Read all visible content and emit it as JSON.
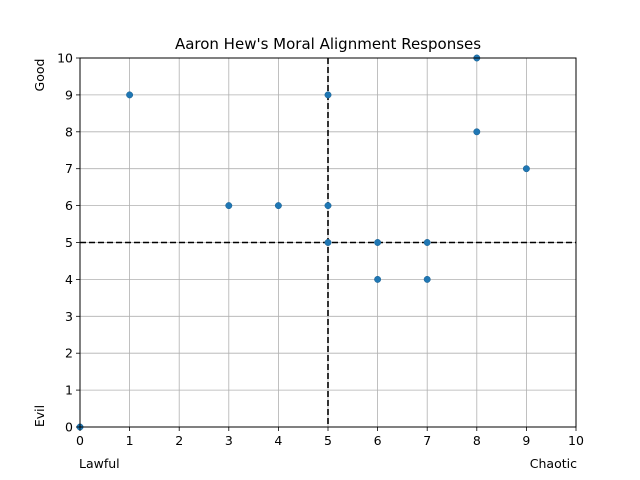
{
  "chart_data": {
    "type": "scatter",
    "title": "Aaron Hew's Moral Alignment Responses",
    "xlabel": "",
    "ylabel": "",
    "x_left_label": "Lawful",
    "x_right_label": "Chaotic",
    "y_top_label": "Good",
    "y_bottom_label": "Evil",
    "xlim": [
      0,
      10
    ],
    "ylim": [
      0,
      10
    ],
    "xticks": [
      0,
      1,
      2,
      3,
      4,
      5,
      6,
      7,
      8,
      9,
      10
    ],
    "yticks": [
      0,
      1,
      2,
      3,
      4,
      5,
      6,
      7,
      8,
      9,
      10
    ],
    "grid": true,
    "reference_lines": {
      "x": 5,
      "y": 5,
      "style": "dashed",
      "color": "#000000"
    },
    "point_color": "#1f77b4",
    "points": [
      {
        "x": 0,
        "y": 0
      },
      {
        "x": 1,
        "y": 9
      },
      {
        "x": 3,
        "y": 6
      },
      {
        "x": 4,
        "y": 6
      },
      {
        "x": 5,
        "y": 9
      },
      {
        "x": 5,
        "y": 6
      },
      {
        "x": 5,
        "y": 5
      },
      {
        "x": 6,
        "y": 5
      },
      {
        "x": 6,
        "y": 4
      },
      {
        "x": 7,
        "y": 5
      },
      {
        "x": 7,
        "y": 4
      },
      {
        "x": 8,
        "y": 10
      },
      {
        "x": 8,
        "y": 8
      },
      {
        "x": 9,
        "y": 7
      }
    ]
  }
}
